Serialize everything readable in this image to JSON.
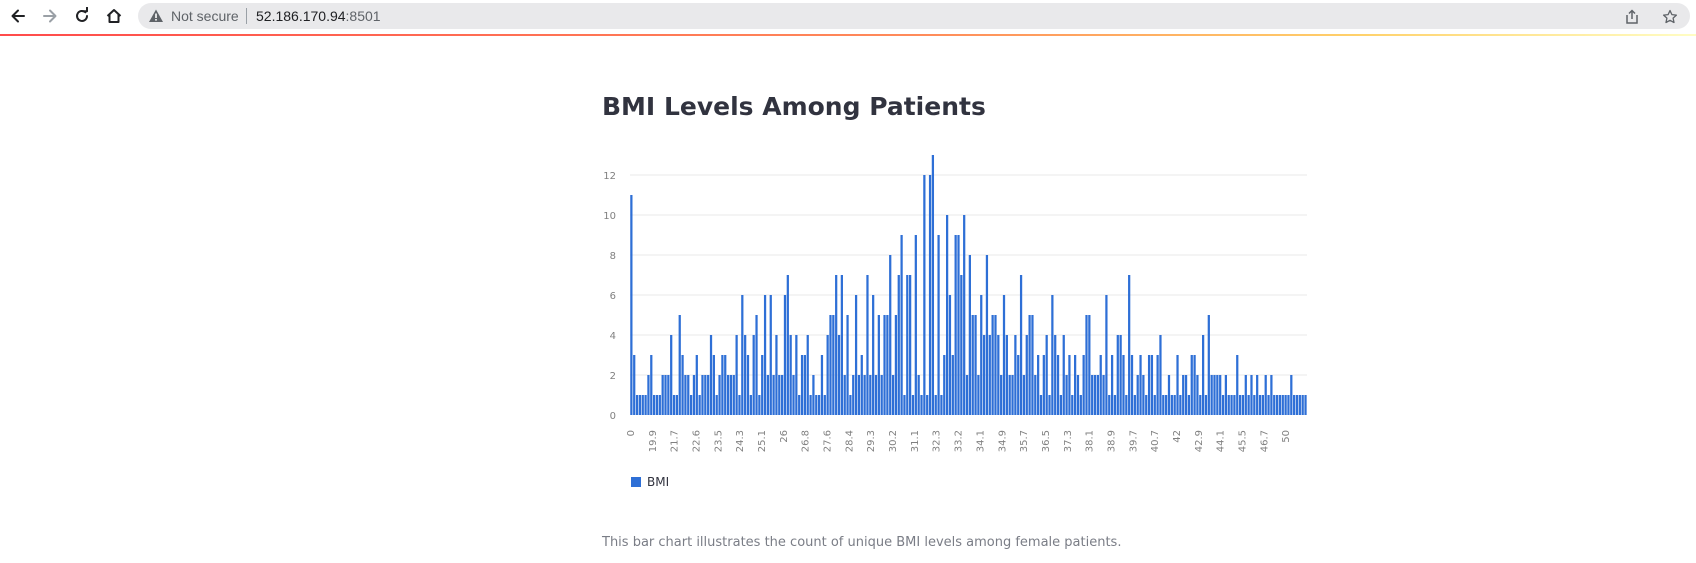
{
  "browser": {
    "security_label": "Not secure",
    "url_host": "52.186.170.94",
    "url_port": ":8501"
  },
  "page": {
    "title": "BMI Levels Among Patients",
    "caption": "This bar chart illustrates the count of unique BMI levels among female patients."
  },
  "colors": {
    "bar": "#2e6fd6",
    "accent_gradient_start": "#ff4b4b",
    "accent_gradient_end": "#fffdc4"
  },
  "chart_data": {
    "type": "bar",
    "title": "",
    "xlabel": "",
    "ylabel": "",
    "ylim": [
      0,
      13.5
    ],
    "yticks": [
      0,
      2,
      4,
      6,
      8,
      10,
      12
    ],
    "xtick_labels": [
      "0",
      "19.9",
      "21.7",
      "22.6",
      "23.5",
      "24.3",
      "25.1",
      "26",
      "26.8",
      "27.6",
      "28.4",
      "29.3",
      "30.2",
      "31.1",
      "32.3",
      "33.2",
      "34.1",
      "34.9",
      "35.7",
      "36.5",
      "37.3",
      "38.1",
      "38.9",
      "39.7",
      "40.7",
      "42",
      "42.9",
      "44.1",
      "45.5",
      "46.7",
      "50"
    ],
    "legend": {
      "position": "bottom-left",
      "entries": [
        "BMI"
      ]
    },
    "grid": true,
    "series": [
      {
        "name": "BMI",
        "values": [
          11,
          3,
          1,
          1,
          1,
          1,
          2,
          3,
          1,
          1,
          1,
          2,
          2,
          2,
          4,
          1,
          1,
          5,
          3,
          2,
          2,
          1,
          2,
          3,
          1,
          2,
          2,
          2,
          4,
          3,
          1,
          2,
          3,
          3,
          2,
          2,
          2,
          4,
          1,
          6,
          4,
          3,
          1,
          4,
          5,
          1,
          3,
          6,
          2,
          6,
          2,
          4,
          2,
          2,
          6,
          7,
          4,
          2,
          4,
          1,
          3,
          3,
          4,
          1,
          2,
          1,
          1,
          3,
          1,
          4,
          5,
          5,
          7,
          4,
          7,
          2,
          5,
          1,
          2,
          6,
          2,
          3,
          2,
          7,
          2,
          6,
          2,
          5,
          2,
          5,
          5,
          8,
          2,
          5,
          7,
          9,
          1,
          7,
          7,
          1,
          9,
          2,
          1,
          12,
          1,
          12,
          13,
          1,
          9,
          1,
          3,
          10,
          6,
          3,
          9,
          9,
          7,
          10,
          2,
          8,
          5,
          5,
          2,
          6,
          4,
          8,
          4,
          5,
          5,
          4,
          2,
          6,
          4,
          2,
          2,
          4,
          3,
          7,
          2,
          4,
          5,
          5,
          2,
          3,
          1,
          3,
          4,
          1,
          6,
          4,
          3,
          1,
          4,
          2,
          3,
          1,
          3,
          2,
          1,
          3,
          5,
          5,
          2,
          2,
          2,
          3,
          2,
          6,
          1,
          3,
          1,
          4,
          4,
          3,
          1,
          7,
          3,
          1,
          2,
          3,
          2,
          1,
          3,
          3,
          1,
          3,
          4,
          1,
          1,
          2,
          1,
          1,
          3,
          1,
          2,
          2,
          1,
          3,
          3,
          2,
          1,
          4,
          1,
          5,
          2,
          2,
          2,
          2,
          1,
          2,
          1,
          1,
          1,
          3,
          1,
          1,
          2,
          1,
          2,
          1,
          2,
          1,
          1,
          2,
          1,
          2,
          1,
          1,
          1,
          1,
          1,
          1,
          2,
          1,
          1,
          1,
          1,
          1
        ]
      }
    ]
  }
}
